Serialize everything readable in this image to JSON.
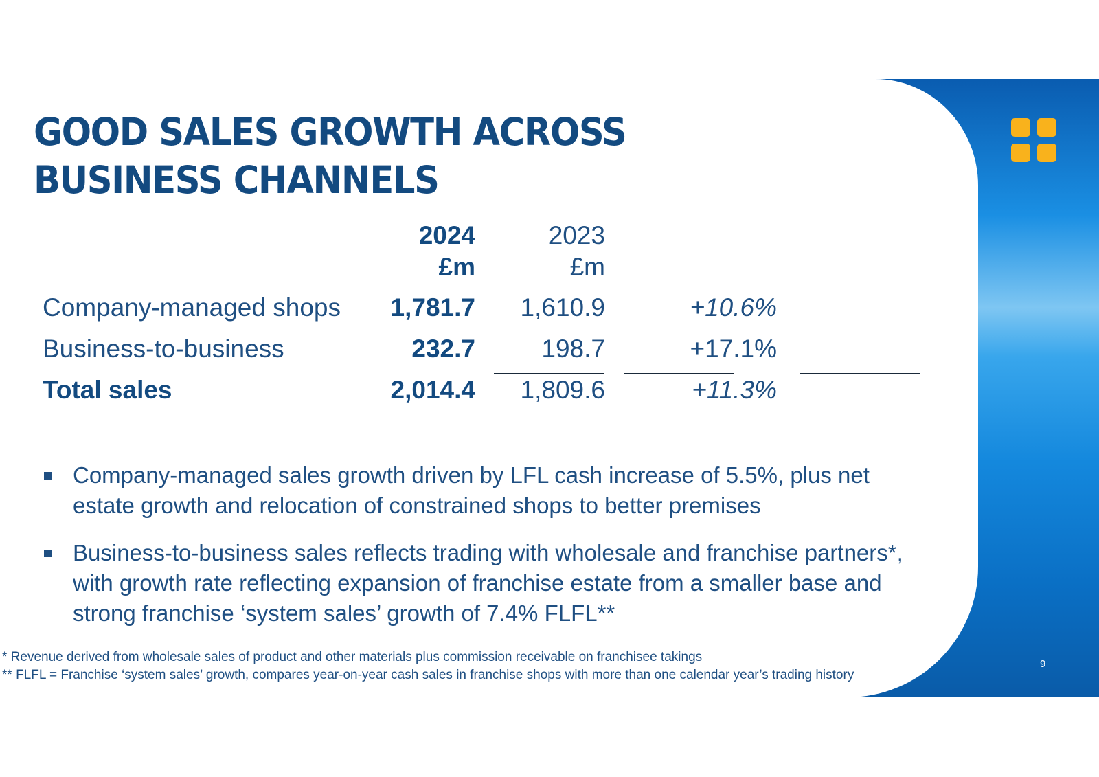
{
  "title_line1": "GOOD SALES GROWTH ACROSS",
  "title_line2": "BUSINESS CHANNELS",
  "table": {
    "header": {
      "year_2024": "2024",
      "unit_2024": "£m",
      "year_2023": "2023",
      "unit_2023": "£m"
    },
    "rows": [
      {
        "label": "Company-managed shops",
        "v2024": "1,781.7",
        "v2023": "1,610.9",
        "change": "+10.6%"
      },
      {
        "label": "Business-to-business",
        "v2024": "232.7",
        "v2023": "198.7",
        "change": "+17.1%"
      },
      {
        "label": "Total sales",
        "v2024": "2,014.4",
        "v2023": "1,809.6",
        "change": "+11.3%"
      }
    ]
  },
  "bullets": [
    "Company-managed sales growth driven by LFL cash increase of 5.5%, plus net estate growth and relocation of constrained shops to better premises",
    "Business-to-business sales reflects trading with wholesale and franchise partners*, with growth rate reflecting expansion of franchise estate from a smaller base and strong franchise ‘system sales’ growth of 7.4% FLFL**"
  ],
  "footnotes": [
    "* Revenue derived from wholesale sales of product and other materials plus commission receivable on franchisee takings",
    "** FLFL = Franchise ‘system sales’ growth, compares year-on-year cash sales in franchise shops with more than one calendar year’s trading history"
  ],
  "page_number": "9",
  "colors": {
    "title": "#134a80",
    "text": "#1f4f82",
    "logo": "#f9b21c",
    "band": "#1488dd"
  },
  "icons": {
    "logo": "four-squares-logo-icon"
  }
}
